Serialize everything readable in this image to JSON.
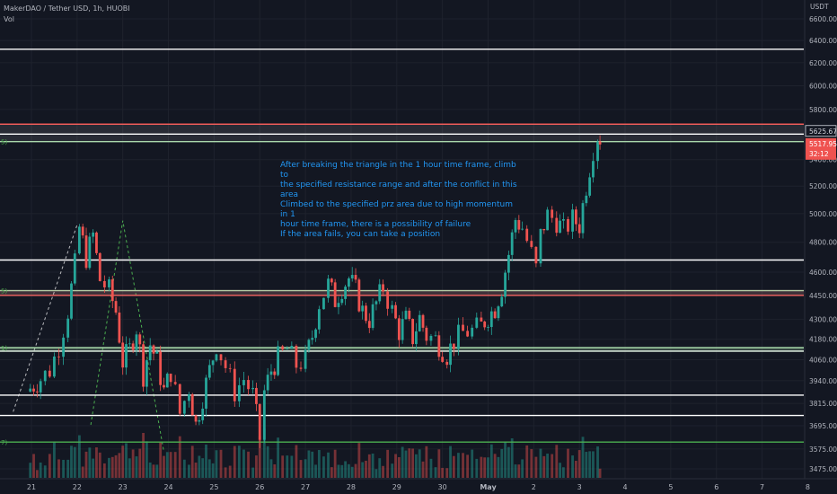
{
  "chart_data": {
    "type": "candlestick",
    "title": "MakerDAO / Tether USD, 1h, HUOBI",
    "volume_label": "Vol",
    "currency_label": "USDT",
    "price_axis": {
      "ticks": [
        6600,
        6400,
        6200,
        6000,
        5800,
        5400,
        5200,
        5000,
        4800,
        4600,
        4450,
        4300,
        4180,
        4060,
        3940,
        3815,
        3695,
        3575,
        3475
      ],
      "tick_labels": [
        "6600.00",
        "6400.00",
        "6200.00",
        "6000.00",
        "5800.00",
        "5400.00",
        "5200.00",
        "5000.00",
        "4800.00",
        "4600.00",
        "4450.00",
        "4300.00",
        "4180.00",
        "4060.00",
        "3940.00",
        "3815.00",
        "3695.00",
        "3575.00",
        "3475.00"
      ],
      "scale": "log"
    },
    "time_axis": {
      "ticks": [
        "21",
        "22",
        "23",
        "24",
        "25",
        "26",
        "27",
        "28",
        "29",
        "30",
        "May",
        "2",
        "3",
        "4",
        "5",
        "6",
        "7",
        "8"
      ]
    },
    "price_badges": [
      {
        "label": "5625.67",
        "value": 5625.67,
        "style": "outlined"
      },
      {
        "label": "5517.95",
        "value": 5517.95,
        "style": "red"
      },
      {
        "label": "32:12",
        "value": null,
        "style": "red"
      }
    ],
    "horizontal_levels": [
      {
        "price": 6320,
        "color": "#ffffff"
      },
      {
        "price": 5680,
        "color": "#ef5350"
      },
      {
        "price": 5600,
        "color": "#ffffff"
      },
      {
        "price": 5540,
        "color": "#a5d6a7"
      },
      {
        "price": 4680,
        "color": "#ffffff"
      },
      {
        "price": 4480,
        "color": "#a5d6a7"
      },
      {
        "price": 4450,
        "color": "#ef5350"
      },
      {
        "price": 4130,
        "color": "#a5d6a7"
      },
      {
        "price": 4110,
        "color": "#ffffff"
      },
      {
        "price": 3860,
        "color": "#ffffff"
      },
      {
        "price": 3750,
        "color": "#ffffff"
      },
      {
        "price": 3610,
        "color": "#4caf50"
      }
    ],
    "level_tags": [
      {
        "text": "5)",
        "price": 5540
      },
      {
        "text": "5)",
        "price": 4480
      },
      {
        "text": "1)",
        "price": 4130
      },
      {
        "text": "7)",
        "price": 3610
      }
    ],
    "close_path": [
      [
        20.9,
        3880
      ],
      [
        21.2,
        3950
      ],
      [
        21.4,
        4000
      ],
      [
        21.6,
        4140
      ],
      [
        21.8,
        4350
      ],
      [
        21.95,
        4650
      ],
      [
        22.05,
        4900
      ],
      [
        22.2,
        4700
      ],
      [
        22.35,
        4850
      ],
      [
        22.5,
        4550
      ],
      [
        22.7,
        4480
      ],
      [
        22.85,
        4350
      ],
      [
        23.0,
        4050
      ],
      [
        23.15,
        4120
      ],
      [
        23.3,
        4250
      ],
      [
        23.45,
        3980
      ],
      [
        23.6,
        4150
      ],
      [
        23.75,
        4050
      ],
      [
        23.9,
        3880
      ],
      [
        24.05,
        3990
      ],
      [
        24.25,
        3760
      ],
      [
        24.45,
        3900
      ],
      [
        24.6,
        3700
      ],
      [
        24.75,
        3850
      ],
      [
        24.9,
        4000
      ],
      [
        25.05,
        4150
      ],
      [
        25.25,
        4020
      ],
      [
        25.45,
        3880
      ],
      [
        25.65,
        3950
      ],
      [
        25.85,
        3860
      ],
      [
        26.0,
        3630
      ],
      [
        26.1,
        3880
      ],
      [
        26.25,
        4000
      ],
      [
        26.4,
        4070
      ],
      [
        26.6,
        4120
      ],
      [
        26.8,
        4030
      ],
      [
        27.0,
        4060
      ],
      [
        27.15,
        4200
      ],
      [
        27.3,
        4400
      ],
      [
        27.5,
        4520
      ],
      [
        27.65,
        4420
      ],
      [
        27.8,
        4500
      ],
      [
        27.95,
        4560
      ],
      [
        28.1,
        4480
      ],
      [
        28.25,
        4350
      ],
      [
        28.4,
        4300
      ],
      [
        28.55,
        4400
      ],
      [
        28.7,
        4500
      ],
      [
        28.9,
        4350
      ],
      [
        29.05,
        4230
      ],
      [
        29.2,
        4300
      ],
      [
        29.35,
        4190
      ],
      [
        29.5,
        4310
      ],
      [
        29.65,
        4200
      ],
      [
        29.85,
        4180
      ],
      [
        30.0,
        4120
      ],
      [
        30.1,
        4090
      ],
      [
        30.25,
        4170
      ],
      [
        30.45,
        4220
      ],
      [
        30.65,
        4230
      ],
      [
        30.85,
        4260
      ],
      [
        31.0,
        4320
      ],
      [
        31.15,
        4370
      ],
      [
        31.3,
        4500
      ],
      [
        31.45,
        4720
      ],
      [
        31.6,
        4960
      ],
      [
        31.75,
        4900
      ],
      [
        31.95,
        4720
      ],
      [
        32.05,
        4620
      ],
      [
        32.15,
        4850
      ],
      [
        32.3,
        4990
      ],
      [
        32.5,
        4950
      ],
      [
        32.65,
        4880
      ],
      [
        32.85,
        4960
      ],
      [
        33.0,
        4920
      ],
      [
        33.15,
        5200
      ],
      [
        33.3,
        5480
      ],
      [
        33.4,
        5590
      ],
      [
        33.45,
        5517.95
      ]
    ]
  },
  "annotation": {
    "text": "After breaking the triangle in the 1 hour time frame, climb to\nthe specified resistance range and after the conflict in this\narea\nClimbed to the specified prz area due to high momentum in 1\nhour time frame, there is a possibility of failure\nIf the area fails, you can take a position"
  },
  "colors": {
    "background": "#131722",
    "up": "#26a69a",
    "down": "#ef5350",
    "text": "#b2b5be",
    "annotation": "#2196f3"
  }
}
